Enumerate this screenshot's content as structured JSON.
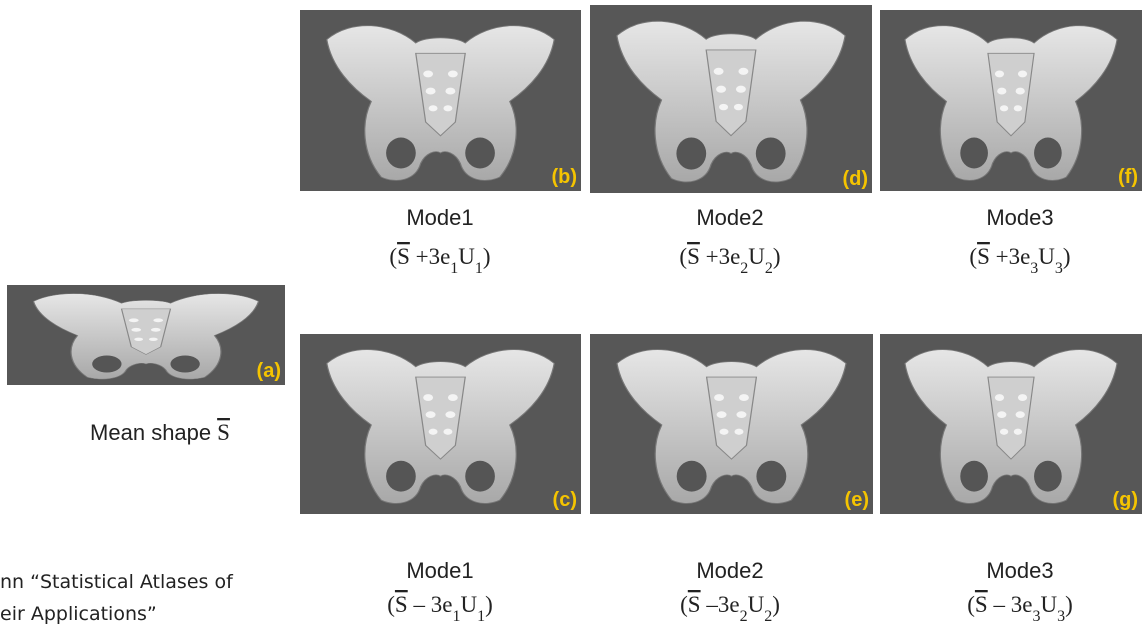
{
  "mean": {
    "label": "(a)",
    "caption": "Mean shape",
    "symbol": "S"
  },
  "modes": [
    {
      "label": "(b)",
      "title": "Mode1",
      "formula": {
        "open": "(",
        "mean": "S",
        "term": " +3e",
        "k": "1",
        "basis": "U",
        "close": ")"
      }
    },
    {
      "label": "(d)",
      "title": "Mode2",
      "formula": {
        "open": "(",
        "mean": "S",
        "term": " +3e",
        "k": "2",
        "basis": "U",
        "close": ")"
      }
    },
    {
      "label": "(f)",
      "title": "Mode3",
      "formula": {
        "open": "(",
        "mean": "S",
        "term": " +3e",
        "k": "3",
        "basis": "U",
        "close": ")"
      }
    },
    {
      "label": "(c)",
      "title": "Mode1",
      "formula": {
        "open": "(",
        "mean": "S",
        "term": " – 3e",
        "k": "1",
        "basis": "U",
        "close": ")"
      }
    },
    {
      "label": "(e)",
      "title": "Mode2",
      "formula": {
        "open": "(",
        "mean": "S",
        "term": " –3e",
        "k": "2",
        "basis": "U",
        "close": ")"
      }
    },
    {
      "label": "(g)",
      "title": "Mode3",
      "formula": {
        "open": "(",
        "mean": "S",
        "term": " – 3e",
        "k": "3",
        "basis": "U",
        "close": ")"
      }
    }
  ],
  "citation": [
    "nn  “Statistical Atlases of",
    "eir Applications”"
  ]
}
